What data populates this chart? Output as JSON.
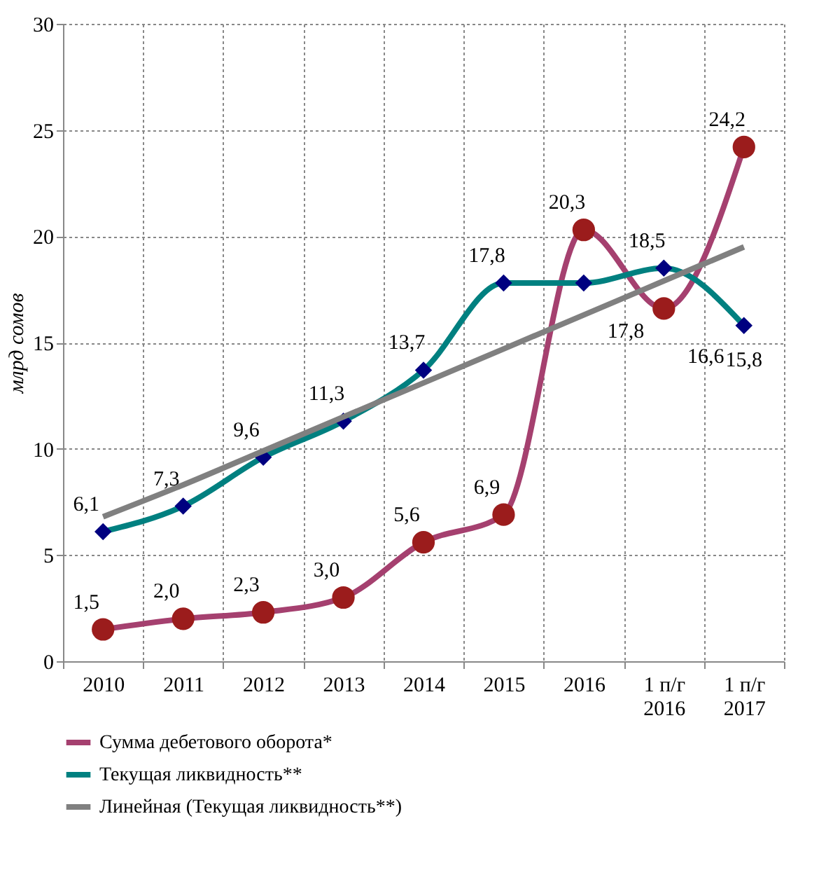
{
  "chart_data": {
    "type": "line",
    "ylabel": "млрд сомов",
    "categories": [
      "2010",
      "2011",
      "2012",
      "2013",
      "2014",
      "2015",
      "2016",
      "1 п/г\n2016",
      "1 п/г\n2017"
    ],
    "ylim": [
      0,
      30
    ],
    "yticks": [
      0,
      5,
      10,
      15,
      20,
      25,
      30
    ],
    "grid": true,
    "legend": "bottom",
    "series": [
      {
        "name": "Сумма дебетового оборота*",
        "color": "#a5406f",
        "marker": "circle",
        "values": [
          1.5,
          2.0,
          2.3,
          3.0,
          5.6,
          6.9,
          20.3,
          16.6,
          24.2
        ],
        "value_labels": [
          "1,5",
          "2,0",
          "2,3",
          "3,0",
          "5,6",
          "6,9",
          "20,3",
          "16,6",
          "24,2"
        ]
      },
      {
        "name": "Текущая ликвидность**",
        "color": "#008080",
        "marker": "diamond",
        "values": [
          6.1,
          7.3,
          9.6,
          11.3,
          13.7,
          17.8,
          17.8,
          18.5,
          15.8
        ],
        "value_labels": [
          "6,1",
          "7,3",
          "9,6",
          "11,3",
          "13,7",
          "17,8",
          "17,8",
          "18,5",
          "15,8"
        ]
      },
      {
        "name": "Линейная (Текущая ликвидность**)",
        "color": "#808080",
        "marker": "none",
        "values": [
          6.8,
          8.3,
          9.9,
          11.5,
          13.1,
          14.7,
          16.3,
          17.9,
          19.5
        ]
      }
    ]
  }
}
